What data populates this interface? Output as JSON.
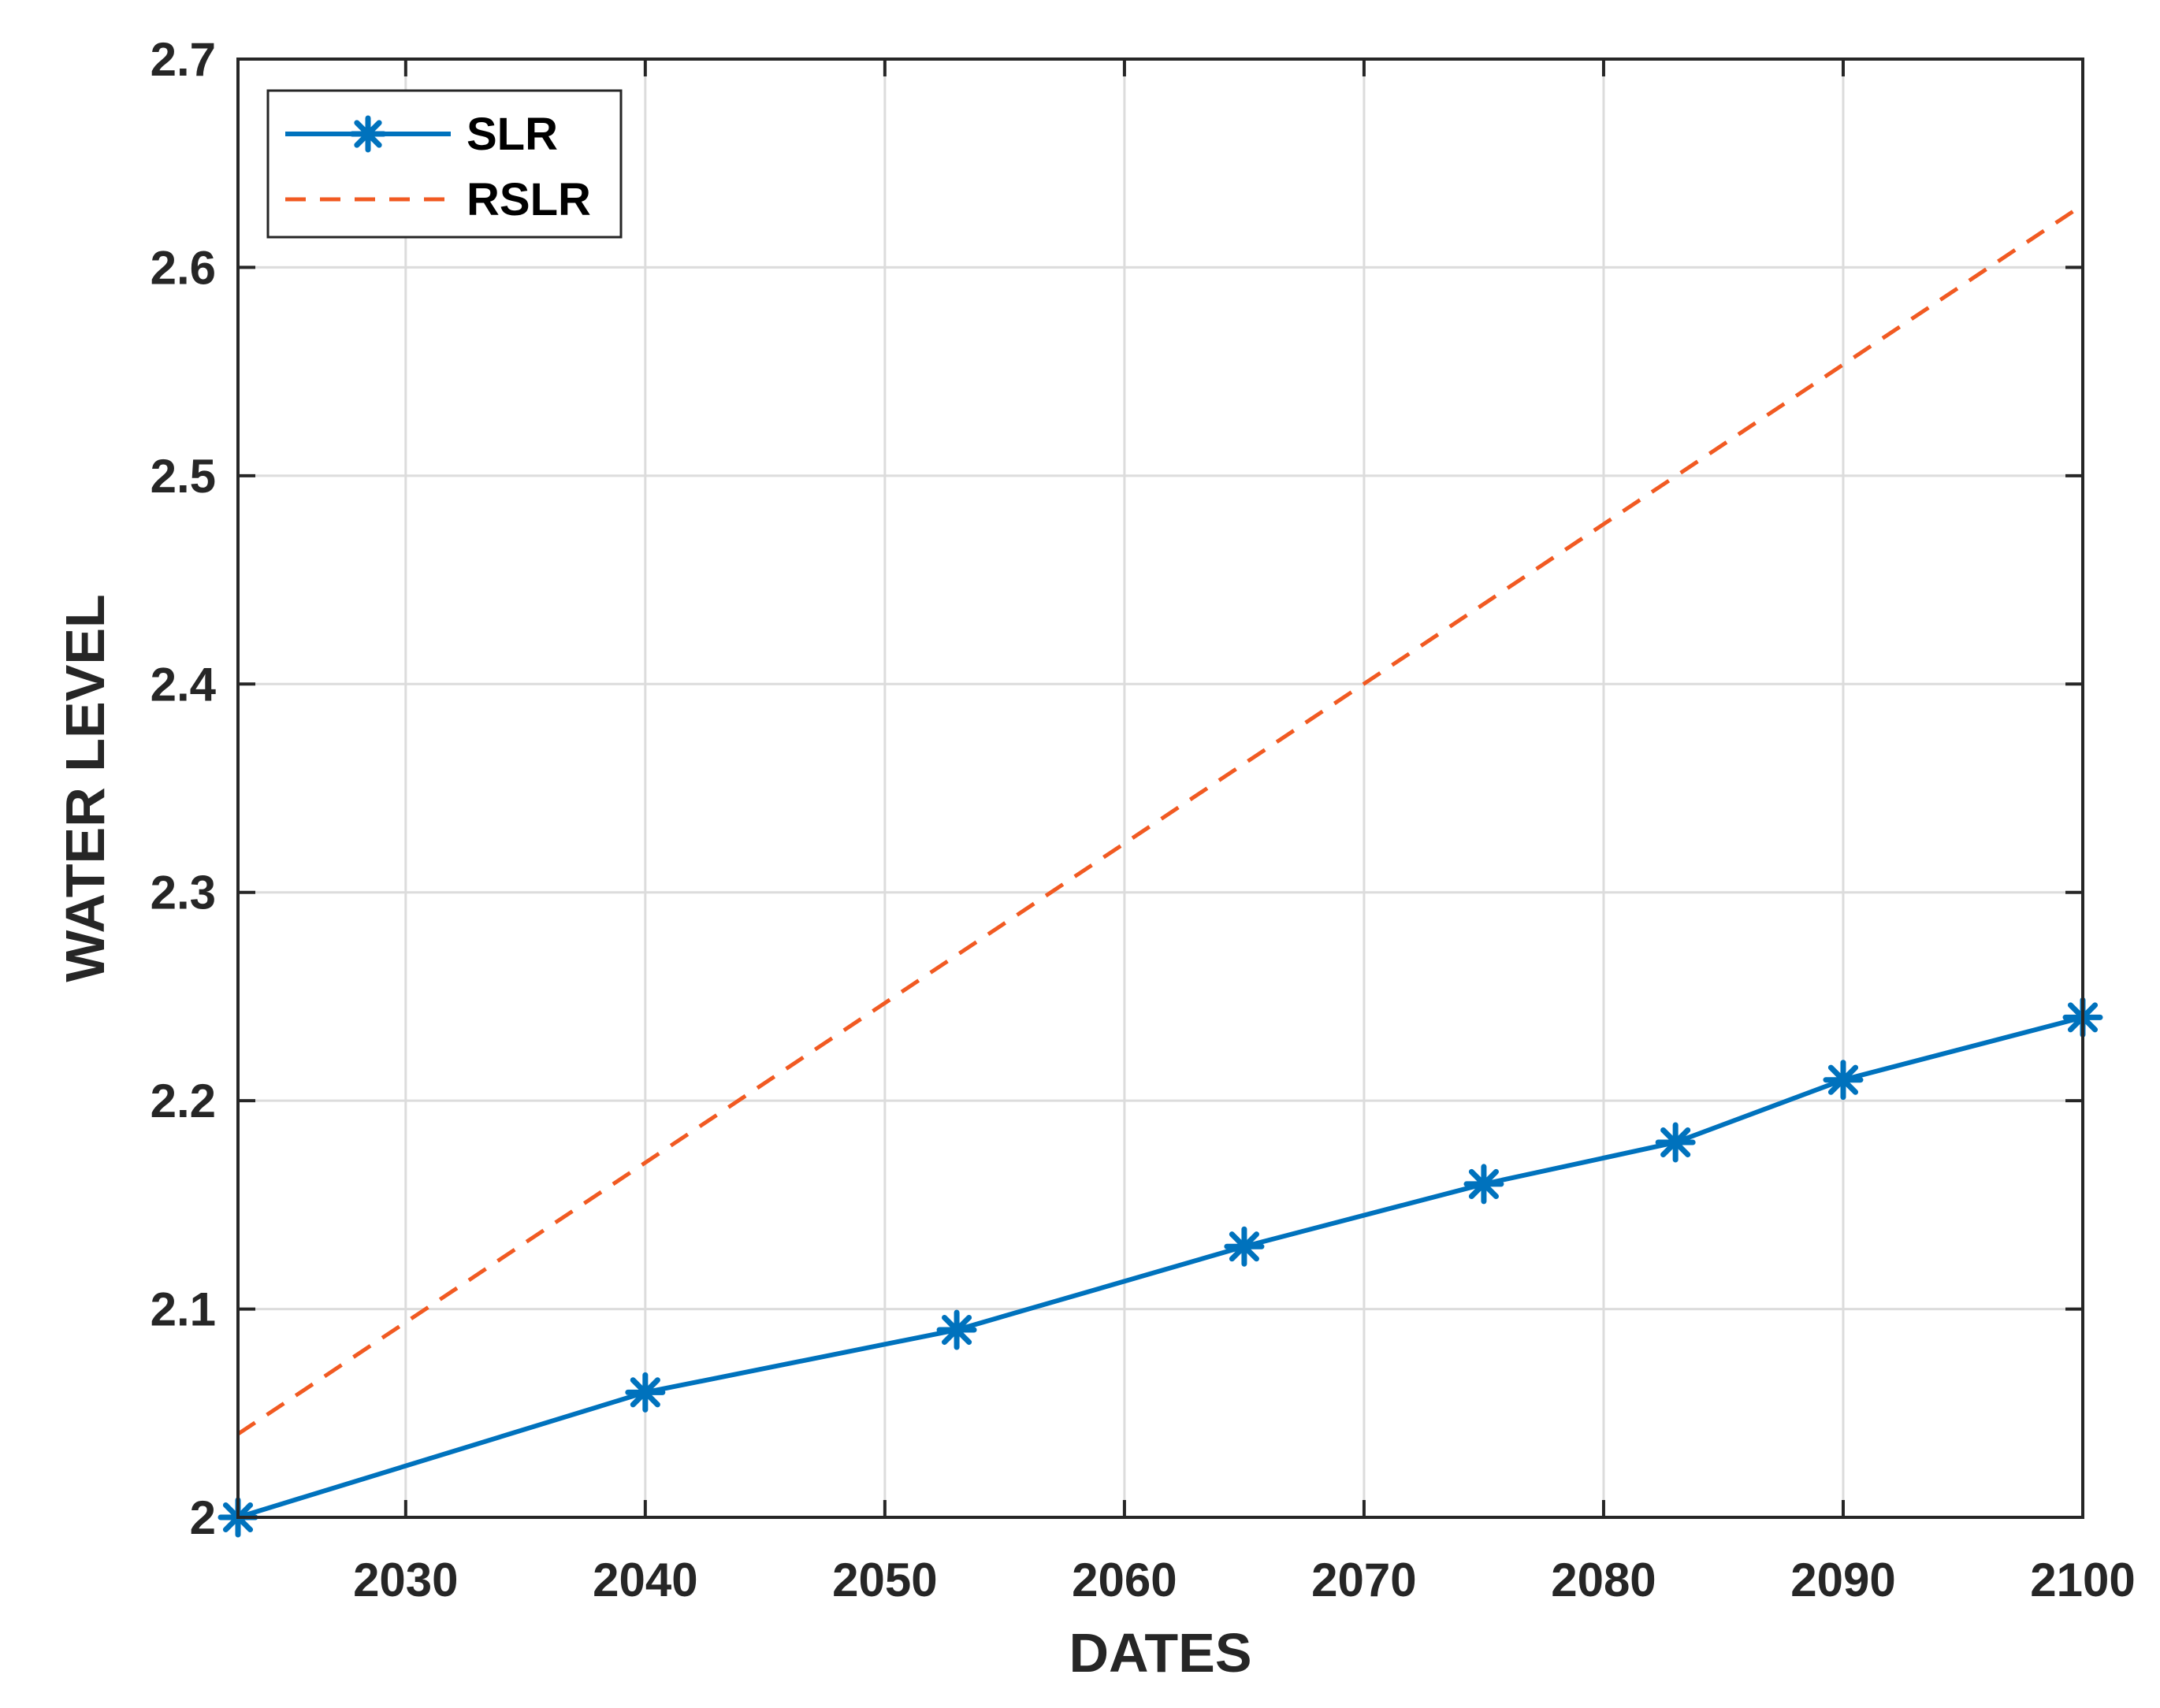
{
  "chart_data": {
    "type": "line",
    "xlabel": "DATES",
    "ylabel": "WATER LEVEL",
    "xlim": [
      2023,
      2100
    ],
    "ylim": [
      2.0,
      2.7
    ],
    "xticks": [
      2030,
      2040,
      2050,
      2060,
      2070,
      2080,
      2090,
      2100
    ],
    "yticks": [
      2.0,
      2.1,
      2.2,
      2.3,
      2.4,
      2.5,
      2.6,
      2.7
    ],
    "ytick_labels": [
      "2",
      "2.1",
      "2.2",
      "2.3",
      "2.4",
      "2.5",
      "2.6",
      "2.7"
    ],
    "grid": true,
    "legend_position": "top-left",
    "series": [
      {
        "name": "SLR",
        "color": "#0072BD",
        "style": "solid",
        "marker": "asterisk",
        "x": [
          2023,
          2040,
          2053,
          2065,
          2075,
          2083,
          2090,
          2100
        ],
        "y": [
          2.0,
          2.06,
          2.09,
          2.13,
          2.16,
          2.18,
          2.21,
          2.24
        ]
      },
      {
        "name": "RSLR",
        "color": "#F15A22",
        "style": "dashed",
        "marker": "none",
        "x": [
          2023,
          2100
        ],
        "y": [
          2.04,
          2.63
        ]
      }
    ]
  }
}
